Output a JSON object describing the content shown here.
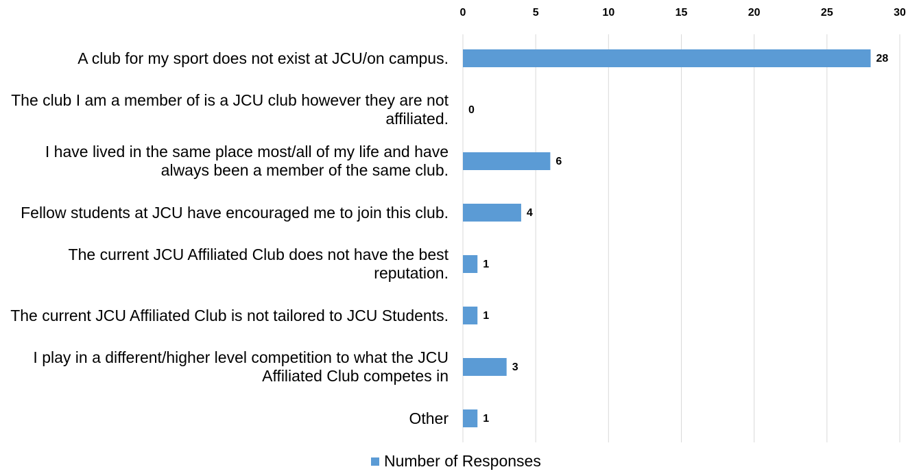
{
  "chart_data": {
    "type": "bar",
    "orientation": "horizontal",
    "categories": [
      "A club for my sport does not exist at JCU/on campus.",
      "The club I am a member of is a JCU club however they are not affiliated.",
      "I have lived in the same place most/all of my life and have always been a member of the same club.",
      "Fellow students at JCU have encouraged me to join this club.",
      "The current JCU Affiliated Club does not have the best reputation.",
      "The current JCU Affiliated Club is not tailored to JCU Students.",
      "I play in a different/higher level competition to what the JCU Affiliated Club competes in",
      "Other"
    ],
    "series": [
      {
        "name": "Number of Responses",
        "color": "#5b9bd5",
        "values": [
          28,
          0,
          6,
          4,
          1,
          1,
          3,
          1
        ]
      }
    ],
    "xlim": [
      0,
      30
    ],
    "xticks": [
      0,
      5,
      10,
      15,
      20,
      25,
      30
    ],
    "grid": true,
    "legend": "bottom"
  }
}
